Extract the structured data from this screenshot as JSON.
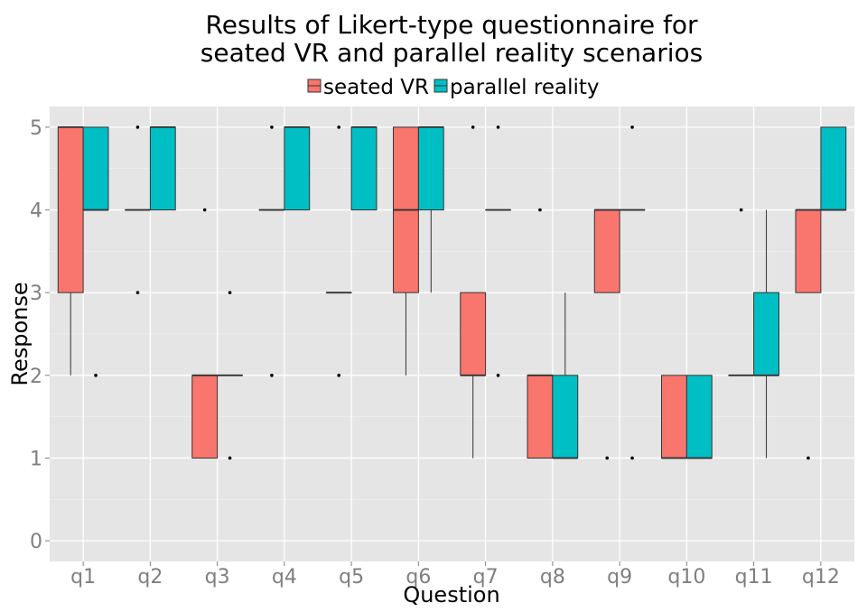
{
  "chart_data": {
    "type": "box",
    "title_lines": [
      "Results of Likert-type questionnaire for",
      "seated VR and parallel reality scenarios"
    ],
    "xlabel": "Question",
    "ylabel": "Response",
    "categories": [
      "q1",
      "q2",
      "q3",
      "q4",
      "q5",
      "q6",
      "q7",
      "q8",
      "q9",
      "q10",
      "q11",
      "q12"
    ],
    "ylim": [
      -0.25,
      5.25
    ],
    "yticks": [
      0,
      1,
      2,
      3,
      4,
      5
    ],
    "ytick_labels": [
      "0",
      "1",
      "2",
      "3",
      "4",
      "5"
    ],
    "grid": true,
    "legend_position": "top",
    "series": [
      {
        "name": "seated VR",
        "color": "#F8766D",
        "boxes": [
          {
            "lower": 2,
            "q1": 3,
            "median": 5,
            "q3": 5,
            "upper": 5,
            "outliers": []
          },
          {
            "lower": 4,
            "q1": 4,
            "median": 4,
            "q3": 4,
            "upper": 4,
            "outliers": [
              5,
              3
            ]
          },
          {
            "lower": 1,
            "q1": 1,
            "median": 2,
            "q3": 2,
            "upper": 2,
            "outliers": [
              4
            ]
          },
          {
            "lower": 4,
            "q1": 4,
            "median": 4,
            "q3": 4,
            "upper": 4,
            "outliers": [
              5,
              2
            ]
          },
          {
            "lower": 3,
            "q1": 3,
            "median": 3,
            "q3": 3,
            "upper": 3,
            "outliers": [
              5,
              2
            ]
          },
          {
            "lower": 2,
            "q1": 3,
            "median": 4,
            "q3": 5,
            "upper": 5,
            "outliers": []
          },
          {
            "lower": 1,
            "q1": 2,
            "median": 2,
            "q3": 3,
            "upper": 3,
            "outliers": [
              5
            ]
          },
          {
            "lower": 1,
            "q1": 1,
            "median": 2,
            "q3": 2,
            "upper": 2,
            "outliers": [
              4
            ]
          },
          {
            "lower": 3,
            "q1": 3,
            "median": 4,
            "q3": 4,
            "upper": 4,
            "outliers": [
              1
            ]
          },
          {
            "lower": 1,
            "q1": 1,
            "median": 1,
            "q3": 2,
            "upper": 2,
            "outliers": []
          },
          {
            "lower": 2,
            "q1": 2,
            "median": 2,
            "q3": 2,
            "upper": 2,
            "outliers": [
              4
            ]
          },
          {
            "lower": 3,
            "q1": 3,
            "median": 4,
            "q3": 4,
            "upper": 4,
            "outliers": [
              1
            ]
          }
        ]
      },
      {
        "name": "parallel reality",
        "color": "#00BFC4",
        "boxes": [
          {
            "lower": 4,
            "q1": 4,
            "median": 4,
            "q3": 5,
            "upper": 5,
            "outliers": [
              2
            ]
          },
          {
            "lower": 4,
            "q1": 4,
            "median": 5,
            "q3": 5,
            "upper": 5,
            "outliers": []
          },
          {
            "lower": 2,
            "q1": 2,
            "median": 2,
            "q3": 2,
            "upper": 2,
            "outliers": [
              3,
              1
            ]
          },
          {
            "lower": 4,
            "q1": 4,
            "median": 5,
            "q3": 5,
            "upper": 5,
            "outliers": []
          },
          {
            "lower": 4,
            "q1": 4,
            "median": 5,
            "q3": 5,
            "upper": 5,
            "outliers": []
          },
          {
            "lower": 3,
            "q1": 4,
            "median": 5,
            "q3": 5,
            "upper": 5,
            "outliers": []
          },
          {
            "lower": 4,
            "q1": 4,
            "median": 4,
            "q3": 4,
            "upper": 4,
            "outliers": [
              5,
              2
            ]
          },
          {
            "lower": 1,
            "q1": 1,
            "median": 1,
            "q3": 2,
            "upper": 3,
            "outliers": []
          },
          {
            "lower": 4,
            "q1": 4,
            "median": 4,
            "q3": 4,
            "upper": 4,
            "outliers": [
              5,
              1
            ]
          },
          {
            "lower": 1,
            "q1": 1,
            "median": 1,
            "q3": 2,
            "upper": 2,
            "outliers": []
          },
          {
            "lower": 1,
            "q1": 2,
            "median": 2,
            "q3": 3,
            "upper": 4,
            "outliers": []
          },
          {
            "lower": 4,
            "q1": 4,
            "median": 4,
            "q3": 5,
            "upper": 5,
            "outliers": []
          }
        ]
      }
    ]
  }
}
